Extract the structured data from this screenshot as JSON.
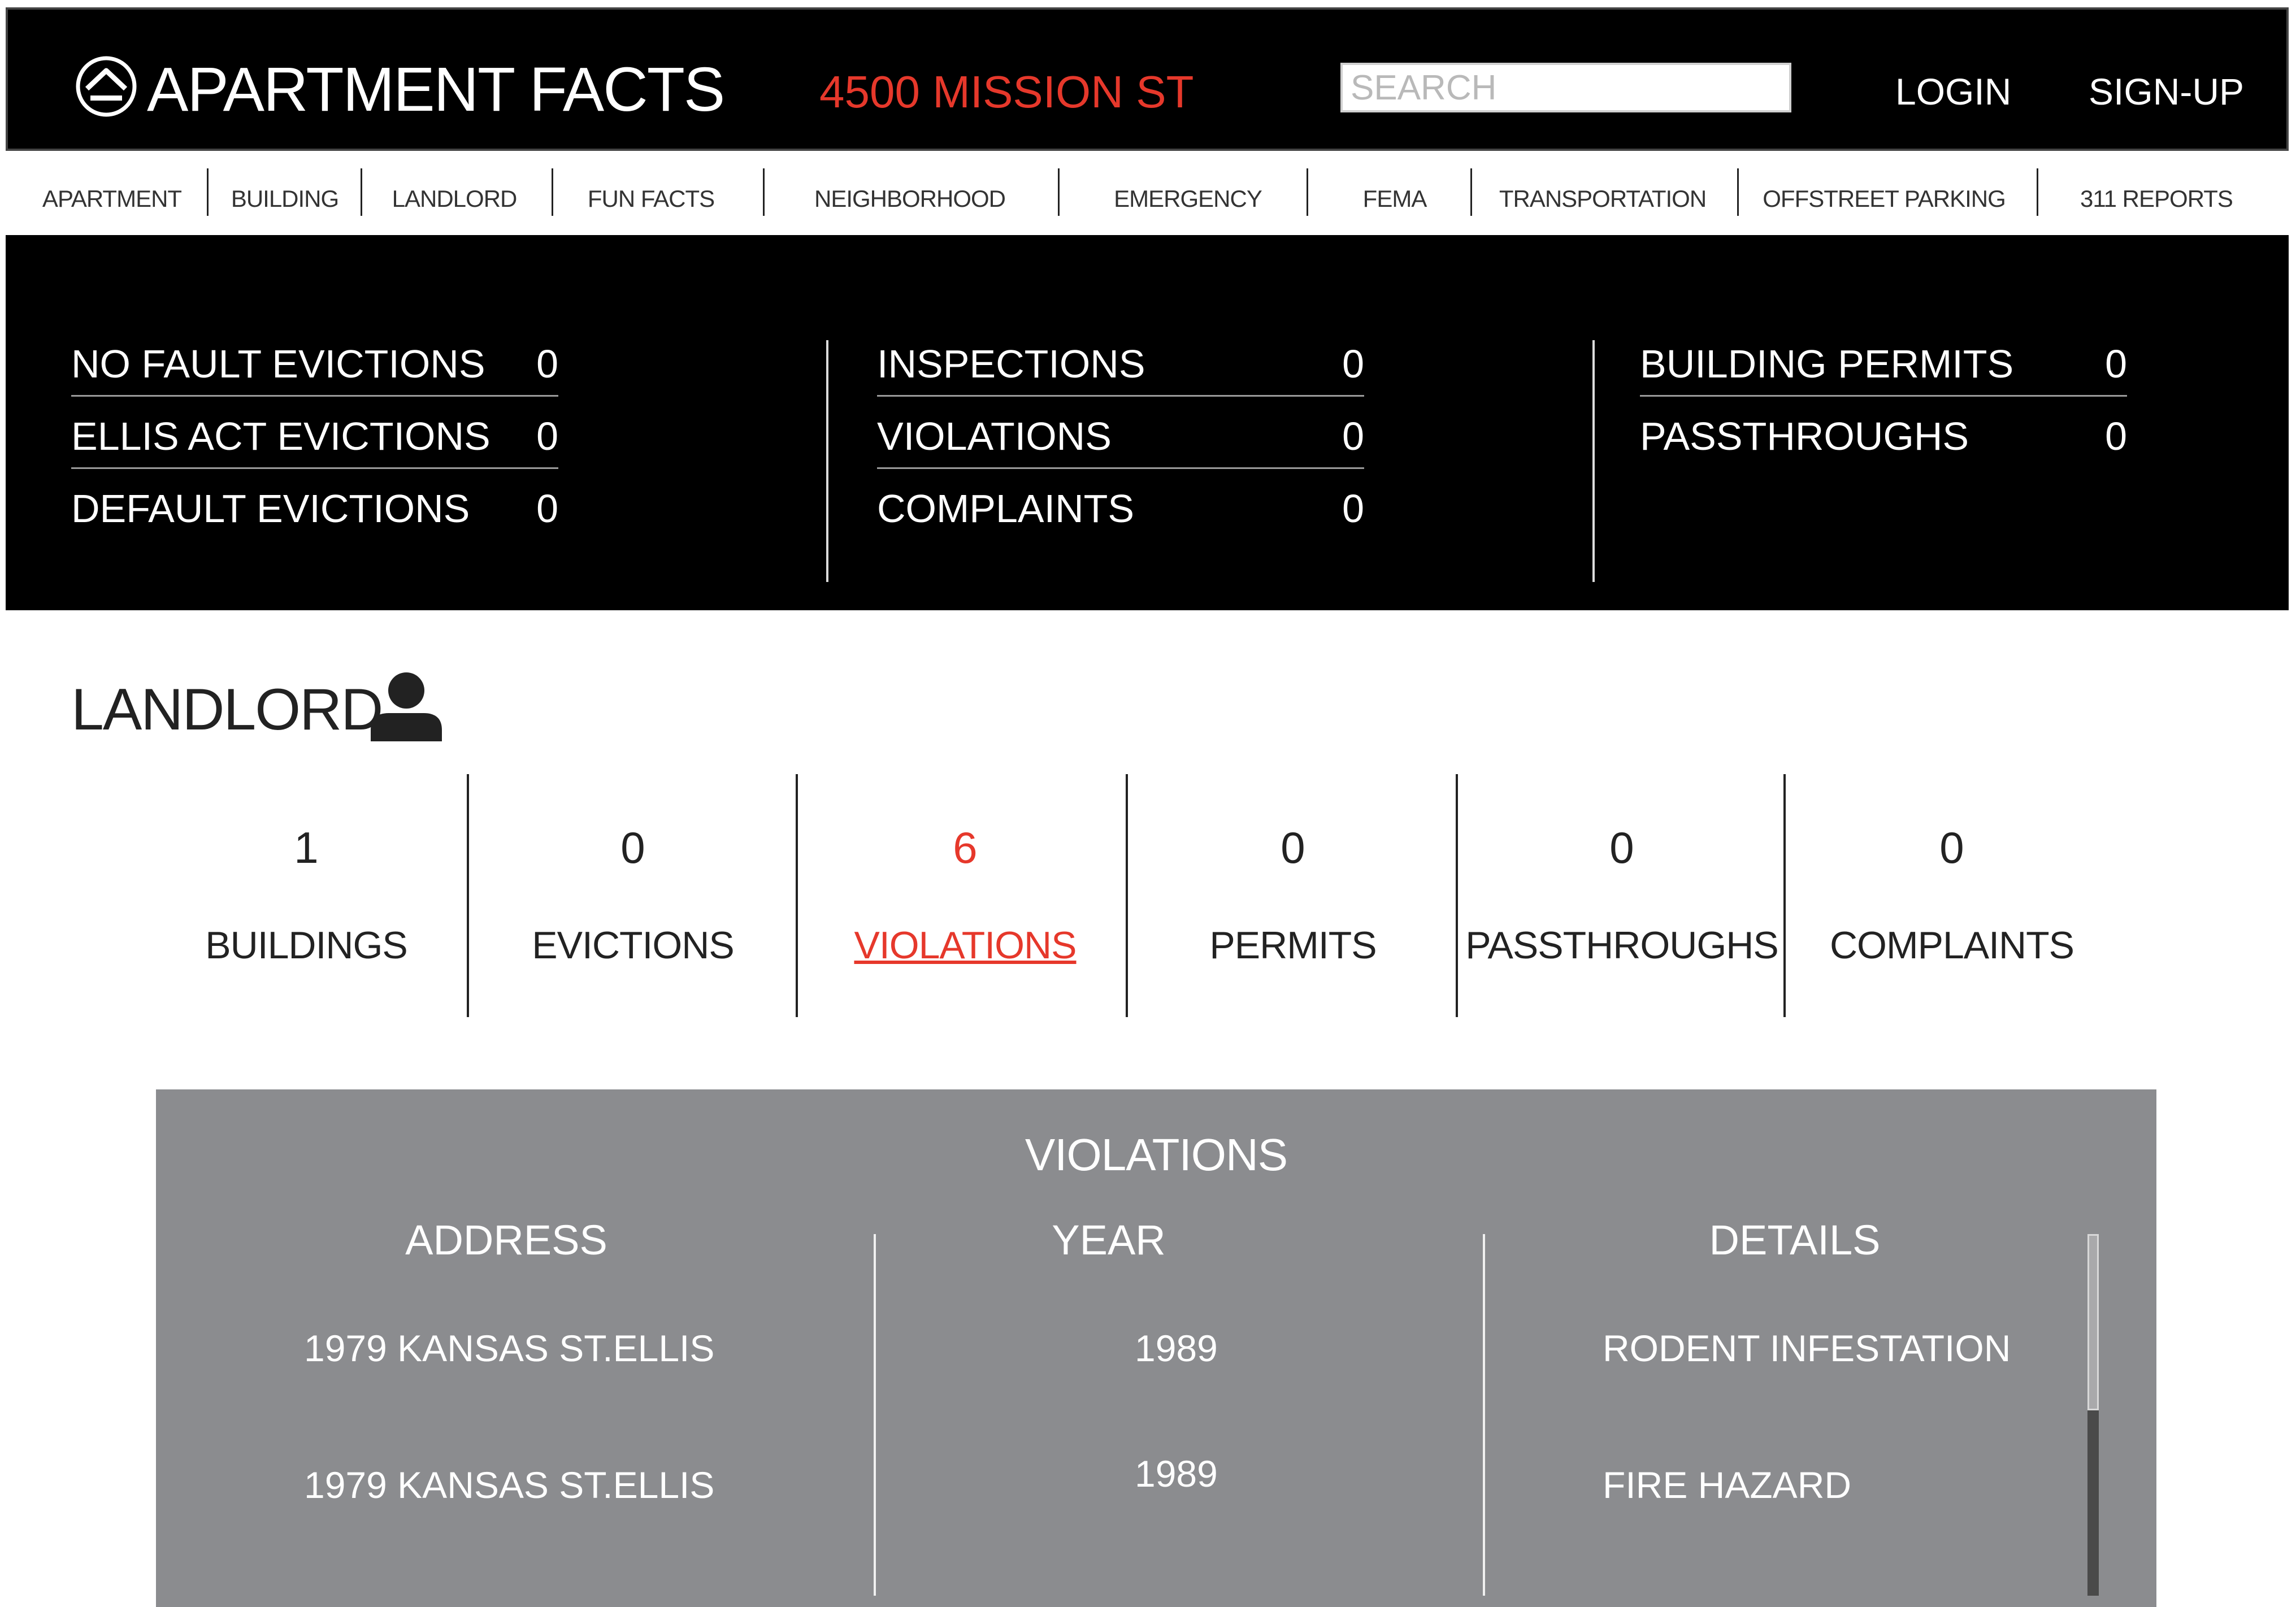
{
  "header": {
    "logo_text": "APARTMENT FACTS",
    "address": "4500 MISSION ST",
    "search_placeholder": "SEARCH",
    "login": "LOGIN",
    "signup": "SIGN-UP"
  },
  "nav": [
    "APARTMENT",
    "BUILDING",
    "LANDLORD",
    "FUN FACTS",
    "NEIGHBORHOOD",
    "EMERGENCY",
    "FEMA",
    "TRANSPORTATION",
    "OFFSTREET PARKING",
    "311 REPORTS"
  ],
  "stats": {
    "col1": [
      {
        "label": "NO FAULT EVICTIONS",
        "value": "0"
      },
      {
        "label": "ELLIS ACT EVICTIONS",
        "value": "0"
      },
      {
        "label": "DEFAULT EVICTIONS",
        "value": "0"
      }
    ],
    "col2": [
      {
        "label": "INSPECTIONS",
        "value": "0"
      },
      {
        "label": "VIOLATIONS",
        "value": "0"
      },
      {
        "label": "COMPLAINTS",
        "value": "0"
      }
    ],
    "col3": [
      {
        "label": "BUILDING PERMITS",
        "value": "0"
      },
      {
        "label": "PASSTHROUGHS",
        "value": "0"
      }
    ]
  },
  "landlord": {
    "title": "LANDLORD",
    "summary": [
      {
        "value": "1",
        "label": "BUILDINGS"
      },
      {
        "value": "0",
        "label": "EVICTIONS"
      },
      {
        "value": "6",
        "label": "VIOLATIONS"
      },
      {
        "value": "0",
        "label": "PERMITS"
      },
      {
        "value": "0",
        "label": "PASSTHROUGHS"
      },
      {
        "value": "0",
        "label": "COMPLAINTS"
      }
    ],
    "active_index": 2
  },
  "violations": {
    "title": "VIOLATIONS",
    "columns": [
      "ADDRESS",
      "YEAR",
      "DETAILS"
    ],
    "rows": [
      {
        "address": "1979 KANSAS ST.ELLIS",
        "year": "1989",
        "details": "RODENT INFESTATION"
      },
      {
        "address": "1979 KANSAS ST.ELLIS",
        "year": "1989",
        "details": "FIRE HAZARD"
      }
    ]
  },
  "colors": {
    "accent": "#e6382b",
    "band": "#000000",
    "panel": "#8b8c8f"
  },
  "icons": {
    "logo": "house-circle-icon",
    "landlord": "person-icon"
  }
}
